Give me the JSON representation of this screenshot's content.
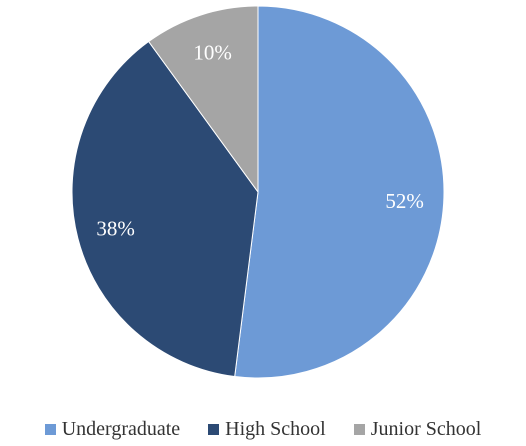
{
  "chart_data": {
    "type": "pie",
    "categories": [
      "Undergraduate",
      "High School",
      "Junior School"
    ],
    "values": [
      52,
      38,
      10
    ],
    "data_labels": [
      "52%",
      "38%",
      "10%"
    ],
    "colors": [
      "#6d9ad6",
      "#2c4a74",
      "#a5a5a5"
    ],
    "legend_position": "bottom",
    "start": "12 o'clock, clockwise"
  }
}
